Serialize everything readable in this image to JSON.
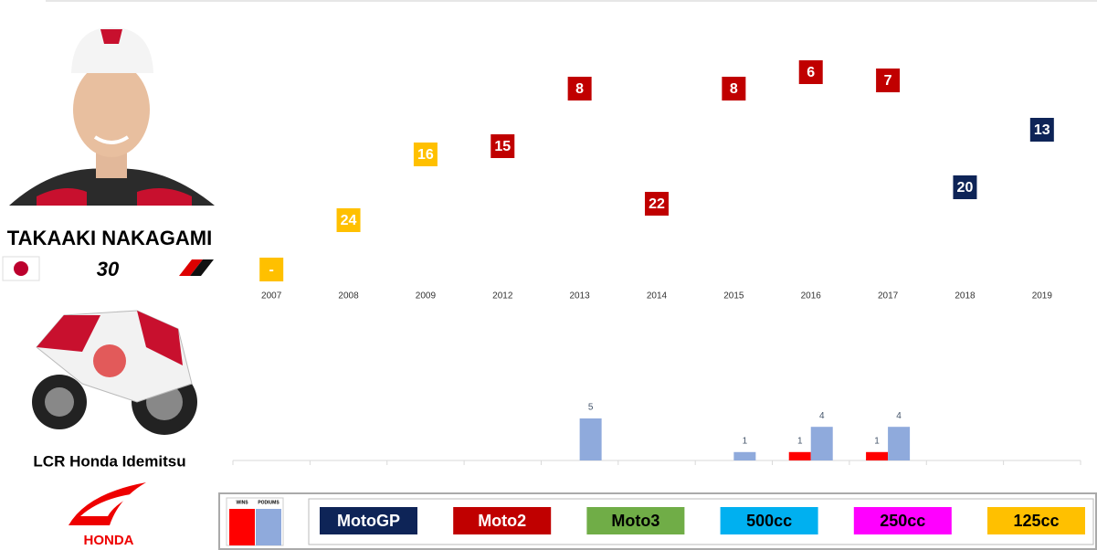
{
  "rider": {
    "name": "TAKAAKI NAKAGAMI",
    "number": "30",
    "team": "LCR Honda Idemitsu",
    "brand": "HONDA"
  },
  "chart_data": [
    {
      "type": "rank",
      "categories": [
        "2007",
        "2008",
        "2009",
        "2012",
        "2013",
        "2014",
        "2015",
        "2016",
        "2017",
        "2018",
        "2019"
      ],
      "values": [
        null,
        24,
        16,
        15,
        8,
        22,
        8,
        6,
        7,
        20,
        13
      ],
      "value_labels": [
        "-",
        "24",
        "16",
        "15",
        "8",
        "22",
        "8",
        "6",
        "7",
        "20",
        "13"
      ],
      "classes": [
        "125cc",
        "125cc",
        "125cc",
        "Moto2",
        "Moto2",
        "Moto2",
        "Moto2",
        "Moto2",
        "Moto2",
        "MotoGP",
        "MotoGP"
      ],
      "ylim": [
        0,
        30
      ],
      "inverted": true
    },
    {
      "type": "bar",
      "series": [
        {
          "name": "WINS",
          "color": "#ff0000",
          "values": [
            null,
            null,
            null,
            null,
            null,
            null,
            null,
            1,
            1,
            null,
            null
          ]
        },
        {
          "name": "PODIUMS",
          "color": "#8faadc",
          "values": [
            null,
            null,
            null,
            null,
            5,
            null,
            1,
            4,
            4,
            null,
            null
          ]
        }
      ],
      "ylim": [
        0,
        5
      ]
    }
  ],
  "legend": [
    {
      "name": "MotoGP",
      "color": "#0e2457",
      "text_color": "#ffffff"
    },
    {
      "name": "Moto2",
      "color": "#c00000",
      "text_color": "#ffffff"
    },
    {
      "name": "Moto3",
      "color": "#70ad47",
      "text_color": "#000000"
    },
    {
      "name": "500cc",
      "color": "#00b0f0",
      "text_color": "#000000"
    },
    {
      "name": "250cc",
      "color": "#ff00ff",
      "text_color": "#000000"
    },
    {
      "name": "125cc",
      "color": "#ffc000",
      "text_color": "#000000"
    }
  ]
}
